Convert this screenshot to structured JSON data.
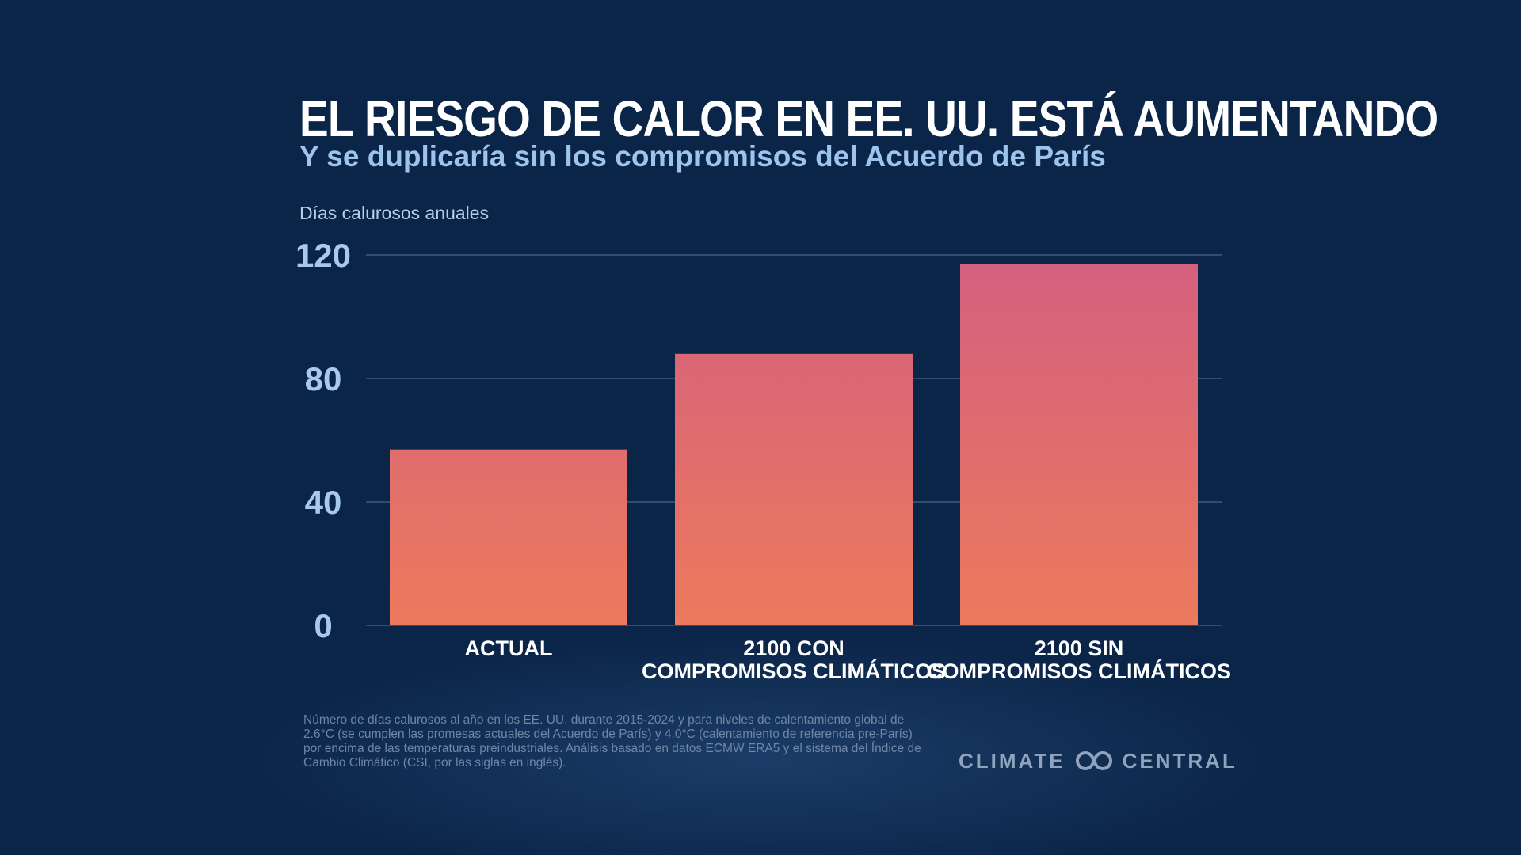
{
  "header": {
    "title": "EL RIESGO DE CALOR EN EE. UU. ESTÁ AUMENTANDO",
    "subtitle": "Y se duplicaría sin los compromisos del Acuerdo de París"
  },
  "chart_data": {
    "type": "bar",
    "title": "EL RIESGO DE CALOR EN EE. UU. ESTÁ AUMENTANDO",
    "subtitle": "Y se duplicaría sin los compromisos del Acuerdo de París",
    "ylabel": "Días calurosos anuales",
    "xlabel": "",
    "categories": [
      [
        "ACTUAL"
      ],
      [
        "2100 CON",
        "COMPROMISOS CLIMÁTICOS"
      ],
      [
        "2100 SIN",
        "COMPROMISOS CLIMÁTICOS"
      ]
    ],
    "values": [
      57,
      88,
      117
    ],
    "ylim": [
      0,
      120
    ],
    "yticks": [
      0,
      40,
      80,
      120
    ],
    "grid": true,
    "colors": {
      "bar_top": "#d4607f",
      "bar_bottom": "#ec7a5c",
      "gridline": "#3c5a80",
      "tick_label": "#a9c8ee",
      "category_label": "#ffffff"
    }
  },
  "footnote": "Número de días calurosos al año en los EE. UU. durante 2015-2024 y para niveles de calentamiento global de 2.6°C (se cumplen las promesas actuales del Acuerdo de París) y 4.0°C (calentamiento de referencia pre-París) por encima de las temperaturas preindustriales. Análisis basado en datos ECMW ERA5 y el sistema del Índice de Cambio Climático (CSI, por las siglas en inglés).",
  "logo": {
    "left": "CLIMATE",
    "right": "CENTRAL",
    "icon": "climate-central-logo-icon"
  }
}
